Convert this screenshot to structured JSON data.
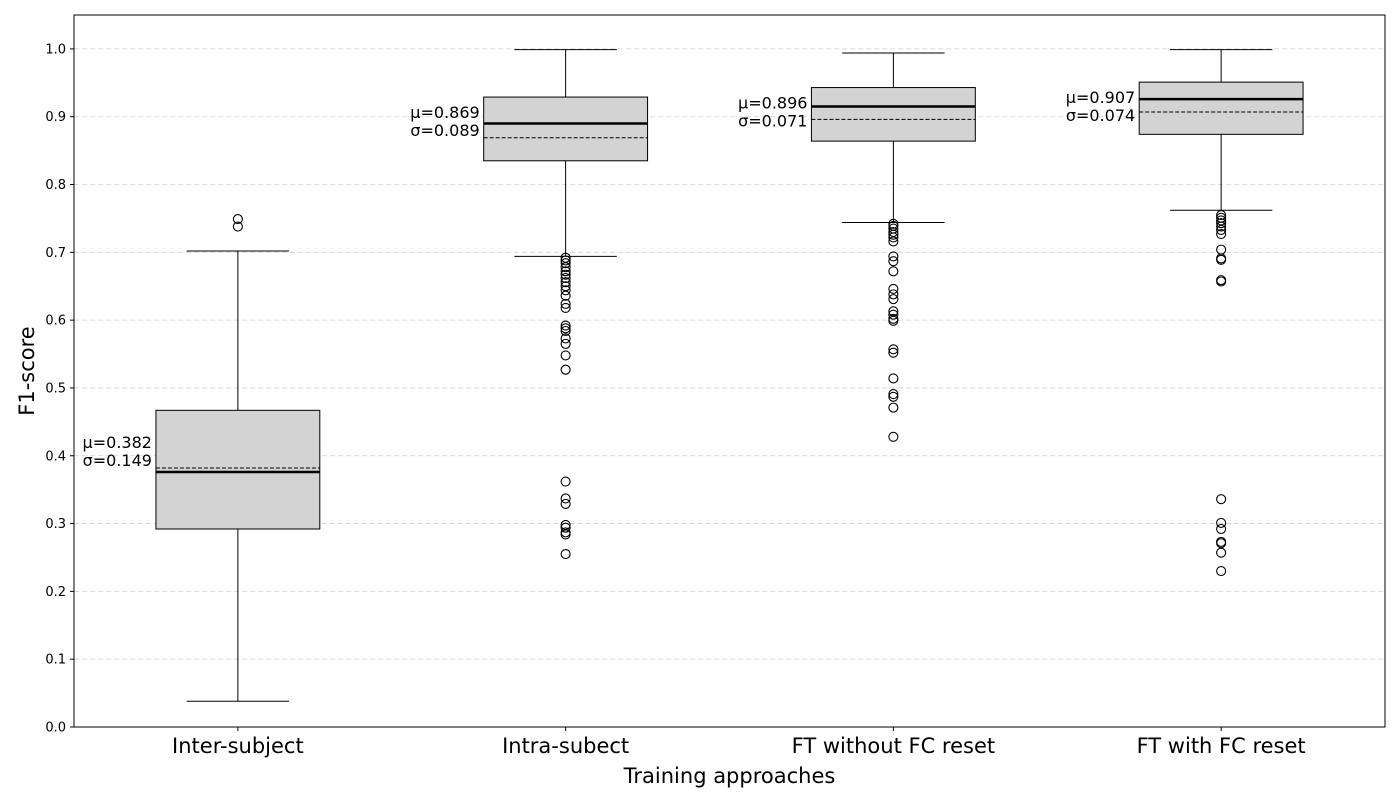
{
  "chart_data": {
    "type": "box",
    "xlabel": "Training approaches",
    "ylabel": "F1-score",
    "ylim": [
      0.0,
      1.05
    ],
    "yticks": [
      0.0,
      0.1,
      0.2,
      0.3,
      0.4,
      0.5,
      0.6,
      0.7,
      0.8,
      0.9,
      1.0
    ],
    "ytick_labels": [
      "0.0",
      "0.1",
      "0.2",
      "0.3",
      "0.4",
      "0.5",
      "0.6",
      "0.7",
      "0.8",
      "0.9",
      "1.0"
    ],
    "grid": {
      "y": true,
      "x": false,
      "style": "dashed"
    },
    "colors": {
      "box_fill": "#d3d3d3",
      "grid": "#d0d0d0"
    },
    "categories": [
      "Inter-subject",
      "Intra-subect",
      "FT without FC reset",
      "FT with FC reset"
    ],
    "boxes": [
      {
        "category": "Inter-subject",
        "whisker_low": 0.038,
        "q1": 0.292,
        "median": 0.376,
        "q3": 0.467,
        "whisker_high": 0.702,
        "mean": 0.382,
        "std": 0.149,
        "mean_label": "μ=0.382",
        "std_label": "σ=0.149",
        "outliers": [
          0.738,
          0.749
        ]
      },
      {
        "category": "Intra-subect",
        "whisker_low": 0.694,
        "q1": 0.835,
        "median": 0.89,
        "q3": 0.929,
        "whisker_high": 0.999,
        "mean": 0.869,
        "std": 0.089,
        "mean_label": "μ=0.869",
        "std_label": "σ=0.089",
        "outliers": [
          0.692,
          0.688,
          0.684,
          0.678,
          0.672,
          0.667,
          0.662,
          0.656,
          0.65,
          0.644,
          0.636,
          0.624,
          0.618,
          0.592,
          0.588,
          0.584,
          0.573,
          0.565,
          0.548,
          0.527,
          0.362,
          0.337,
          0.329,
          0.298,
          0.294,
          0.287,
          0.284,
          0.255
        ]
      },
      {
        "category": "FT without FC reset",
        "whisker_low": 0.744,
        "q1": 0.864,
        "median": 0.915,
        "q3": 0.943,
        "whisker_high": 0.994,
        "mean": 0.896,
        "std": 0.071,
        "mean_label": "μ=0.896",
        "std_label": "σ=0.071",
        "outliers": [
          0.742,
          0.739,
          0.735,
          0.73,
          0.726,
          0.722,
          0.716,
          0.694,
          0.687,
          0.672,
          0.646,
          0.638,
          0.631,
          0.613,
          0.608,
          0.602,
          0.599,
          0.557,
          0.552,
          0.514,
          0.491,
          0.487,
          0.471,
          0.428
        ]
      },
      {
        "category": "FT with FC reset",
        "whisker_low": 0.762,
        "q1": 0.874,
        "median": 0.926,
        "q3": 0.951,
        "whisker_high": 0.999,
        "mean": 0.907,
        "std": 0.074,
        "mean_label": "μ=0.907",
        "std_label": "σ=0.074",
        "outliers": [
          0.755,
          0.751,
          0.747,
          0.743,
          0.738,
          0.733,
          0.727,
          0.704,
          0.691,
          0.689,
          0.659,
          0.657,
          0.336,
          0.301,
          0.292,
          0.273,
          0.271,
          0.257,
          0.23
        ]
      }
    ]
  }
}
